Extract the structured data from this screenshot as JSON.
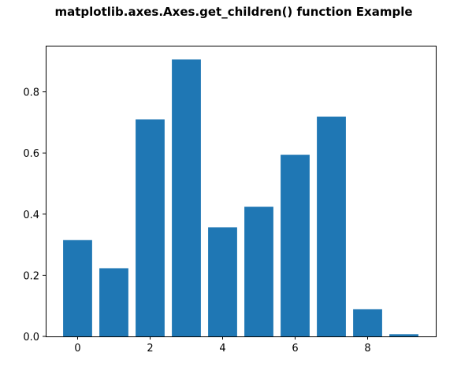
{
  "chart_data": {
    "type": "bar",
    "title": "matplotlib.axes.Axes.get_children() function Example",
    "xlabel": "",
    "ylabel": "",
    "x": [
      0,
      1,
      2,
      3,
      4,
      5,
      6,
      7,
      8,
      9
    ],
    "values": [
      0.315,
      0.223,
      0.71,
      0.906,
      0.357,
      0.424,
      0.594,
      0.719,
      0.089,
      0.007
    ],
    "xlim": [
      -0.88,
      9.88
    ],
    "ylim": [
      0,
      0.951
    ],
    "xticks": [
      0,
      2,
      4,
      6,
      8
    ],
    "xtick_labels": [
      "0",
      "2",
      "4",
      "6",
      "8"
    ],
    "yticks": [
      0.0,
      0.2,
      0.4,
      0.6,
      0.8
    ],
    "ytick_labels": [
      "0.0",
      "0.2",
      "0.4",
      "0.6",
      "0.8"
    ],
    "bar_color": "#1f77b4",
    "grid": false,
    "legend": "none"
  }
}
